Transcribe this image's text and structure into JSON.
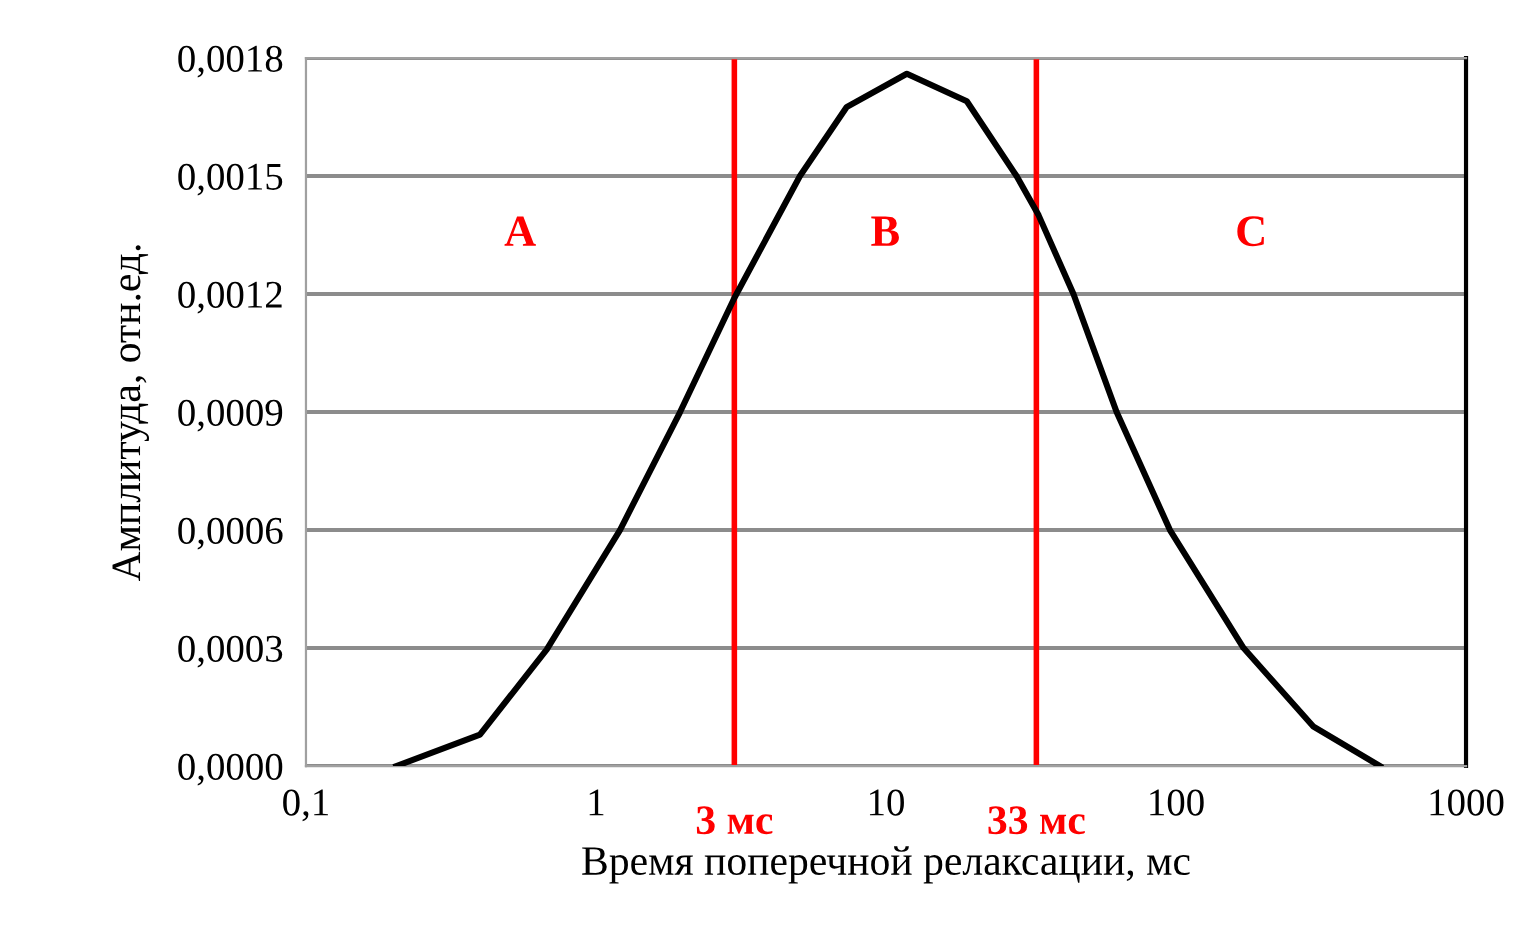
{
  "chart_data": {
    "type": "line",
    "xlabel": "Время поперечной релаксации, мс",
    "ylabel": "Амплитуда, отн.ед.",
    "x": [
      0.205,
      0.398,
      0.676,
      1.21,
      1.95,
      3,
      5.05,
      7.31,
      11.8,
      19,
      28.2,
      33.6,
      44.3,
      62.4,
      95.3,
      171,
      298,
      505
    ],
    "series": [
      {
        "color": "#000000",
        "values": [
          0,
          8e-05,
          0.000296,
          0.0006,
          0.0009,
          0.00119,
          0.0015,
          0.001675,
          0.00176,
          0.00169,
          0.0015,
          0.0014,
          0.0012,
          0.0009,
          0.0006,
          0.0003,
          0.0001,
          0
        ]
      }
    ],
    "log": "x",
    "xlim": [
      0.1,
      1000
    ],
    "xticks": [
      {
        "value": 0.1,
        "label": "0,1"
      },
      1,
      10,
      100,
      1000
    ],
    "ylim": [
      0,
      0.0018
    ],
    "yticks": [
      {
        "value": 0,
        "label": "0,0000"
      },
      {
        "value": 0.0003,
        "label": "0,0003"
      },
      {
        "value": 0.0006,
        "label": "0,0006"
      },
      {
        "value": 0.0009,
        "label": "0,0009"
      },
      {
        "value": 0.0012,
        "label": "0,0012"
      },
      {
        "value": 0.0015,
        "label": "0,0015"
      },
      {
        "value": 0.0018,
        "label": "0,0018"
      }
    ],
    "grid": "y",
    "marker": "none",
    "line_style": "solid",
    "ref_lines": [
      {
        "axis": "x",
        "value": 3,
        "label": "3 мс",
        "color": "#ff0000"
      },
      {
        "axis": "x",
        "value": 33,
        "label": "33 мс",
        "color": "#ff0000"
      }
    ],
    "annotations": [
      "A",
      "B",
      "C"
    ]
  }
}
